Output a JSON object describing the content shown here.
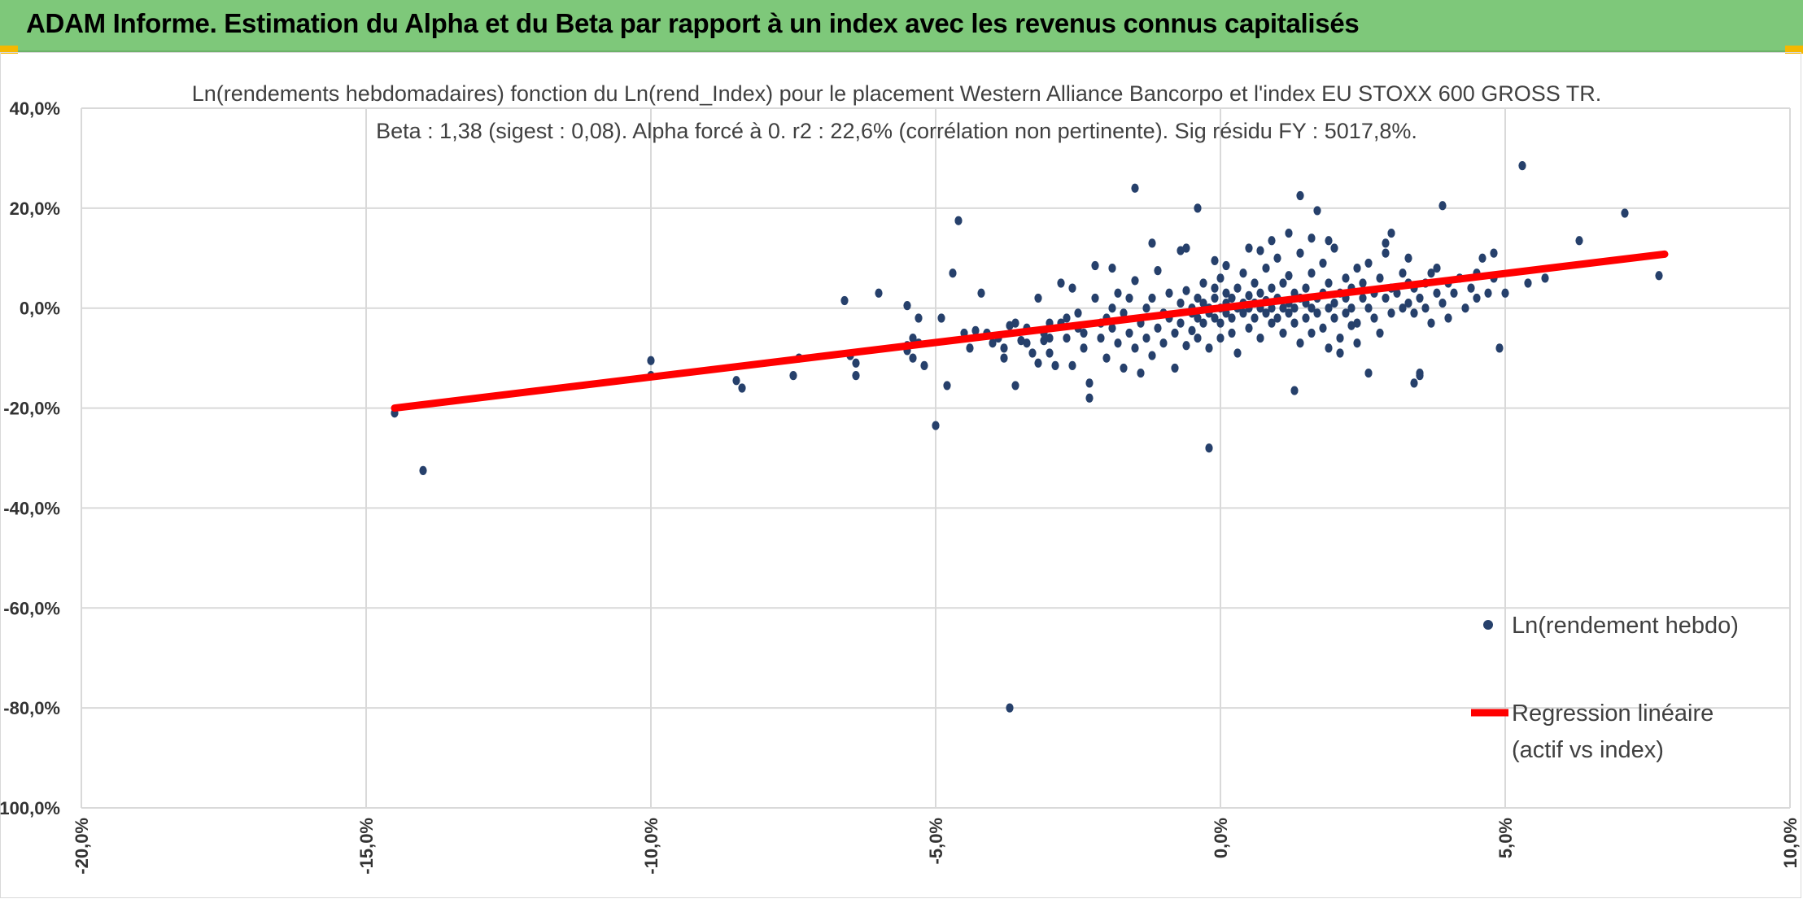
{
  "banner": {
    "title": "ADAM Informe. Estimation du Alpha et du Beta par rapport à un index avec les revenus connus capitalisés",
    "color": "#7ec87a",
    "corner_color": "#f5b800"
  },
  "chart_data": {
    "type": "scatter",
    "title_lines": [
      "Ln(rendements hebdomadaires) fonction du Ln(rend_Index) pour le placement Western Alliance Bancorpo et l'index EU STOXX 600 GROSS TR.",
      "Beta : 1,38 (sigest : 0,08). Alpha forcé à 0. r2 : 22,6% (corrélation non pertinente). Sig résidu FY : 5017,8%."
    ],
    "xlabel": "",
    "ylabel": "",
    "xlim": [
      -0.2,
      0.1
    ],
    "ylim": [
      -1.0,
      0.4
    ],
    "x_ticks": [
      "-20,0%",
      "-15,0%",
      "-10,0%",
      "-5,0%",
      "0,0%",
      "5,0%",
      "10,0%"
    ],
    "y_ticks": [
      "40,0%",
      "20,0%",
      "0,0%",
      "-20,0%",
      "-40,0%",
      "-60,0%",
      "-80,0%",
      "-100,0%"
    ],
    "grid": true,
    "legend_position": "right",
    "series": [
      {
        "name": "Ln(rendement hebdo)",
        "kind": "scatter",
        "color": "#26406b",
        "points": [
          [
            -0.145,
            -0.21
          ],
          [
            -0.14,
            -0.325
          ],
          [
            -0.1,
            -0.105
          ],
          [
            -0.1,
            -0.135
          ],
          [
            -0.085,
            -0.145
          ],
          [
            -0.084,
            -0.16
          ],
          [
            -0.075,
            -0.135
          ],
          [
            -0.074,
            -0.1
          ],
          [
            -0.066,
            0.015
          ],
          [
            -0.065,
            -0.095
          ],
          [
            -0.064,
            -0.11
          ],
          [
            -0.064,
            -0.135
          ],
          [
            -0.06,
            0.03
          ],
          [
            -0.055,
            0.005
          ],
          [
            -0.055,
            -0.075
          ],
          [
            -0.055,
            -0.085
          ],
          [
            -0.054,
            -0.06
          ],
          [
            -0.054,
            -0.1
          ],
          [
            -0.053,
            -0.02
          ],
          [
            -0.053,
            -0.07
          ],
          [
            -0.052,
            -0.115
          ],
          [
            -0.05,
            -0.235
          ],
          [
            -0.049,
            -0.02
          ],
          [
            -0.048,
            -0.155
          ],
          [
            -0.047,
            0.07
          ],
          [
            -0.046,
            0.175
          ],
          [
            -0.045,
            -0.05
          ],
          [
            -0.044,
            -0.08
          ],
          [
            -0.043,
            -0.045
          ],
          [
            -0.042,
            0.03
          ],
          [
            -0.041,
            -0.05
          ],
          [
            -0.04,
            -0.07
          ],
          [
            -0.039,
            -0.06
          ],
          [
            -0.038,
            -0.08
          ],
          [
            -0.038,
            -0.1
          ],
          [
            -0.037,
            -0.035
          ],
          [
            -0.037,
            -0.8
          ],
          [
            -0.036,
            -0.03
          ],
          [
            -0.036,
            -0.155
          ],
          [
            -0.035,
            -0.065
          ],
          [
            -0.034,
            -0.04
          ],
          [
            -0.034,
            -0.07
          ],
          [
            -0.033,
            -0.09
          ],
          [
            -0.032,
            0.02
          ],
          [
            -0.032,
            -0.11
          ],
          [
            -0.031,
            -0.05
          ],
          [
            -0.031,
            -0.065
          ],
          [
            -0.03,
            -0.03
          ],
          [
            -0.03,
            -0.06
          ],
          [
            -0.03,
            -0.09
          ],
          [
            -0.029,
            -0.115
          ],
          [
            -0.028,
            0.05
          ],
          [
            -0.028,
            -0.03
          ],
          [
            -0.027,
            -0.02
          ],
          [
            -0.027,
            -0.06
          ],
          [
            -0.026,
            -0.115
          ],
          [
            -0.025,
            -0.01
          ],
          [
            -0.025,
            -0.04
          ],
          [
            -0.024,
            -0.08
          ],
          [
            -0.024,
            -0.05
          ],
          [
            -0.023,
            -0.15
          ],
          [
            -0.023,
            -0.18
          ],
          [
            -0.022,
            0.085
          ],
          [
            -0.022,
            0.02
          ],
          [
            -0.021,
            -0.03
          ],
          [
            -0.021,
            -0.06
          ],
          [
            -0.02,
            -0.02
          ],
          [
            -0.02,
            -0.1
          ],
          [
            -0.019,
            0.0
          ],
          [
            -0.019,
            -0.04
          ],
          [
            -0.018,
            -0.07
          ],
          [
            -0.018,
            0.03
          ],
          [
            -0.017,
            -0.12
          ],
          [
            -0.017,
            -0.01
          ],
          [
            -0.016,
            -0.05
          ],
          [
            -0.016,
            0.02
          ],
          [
            -0.015,
            -0.08
          ],
          [
            -0.015,
            0.055
          ],
          [
            -0.014,
            -0.03
          ],
          [
            -0.014,
            -0.13
          ],
          [
            -0.013,
            0.0
          ],
          [
            -0.013,
            -0.06
          ],
          [
            -0.012,
            0.02
          ],
          [
            -0.012,
            -0.095
          ],
          [
            -0.011,
            -0.04
          ],
          [
            -0.011,
            0.075
          ],
          [
            -0.01,
            -0.01
          ],
          [
            -0.01,
            -0.07
          ],
          [
            -0.009,
            0.03
          ],
          [
            -0.009,
            -0.02
          ],
          [
            -0.008,
            -0.05
          ],
          [
            -0.008,
            -0.12
          ],
          [
            -0.007,
            0.01
          ],
          [
            -0.007,
            -0.03
          ],
          [
            -0.006,
            0.035
          ],
          [
            -0.006,
            -0.075
          ],
          [
            -0.005,
            -0.01
          ],
          [
            -0.005,
            0.0
          ],
          [
            -0.005,
            -0.045
          ],
          [
            -0.004,
            0.02
          ],
          [
            -0.004,
            -0.02
          ],
          [
            -0.004,
            -0.06
          ],
          [
            -0.003,
            0.01
          ],
          [
            -0.003,
            -0.03
          ],
          [
            -0.003,
            0.05
          ],
          [
            -0.002,
            -0.01
          ],
          [
            -0.002,
            0.0
          ],
          [
            -0.002,
            -0.08
          ],
          [
            -0.001,
            0.02
          ],
          [
            -0.001,
            -0.02
          ],
          [
            -0.001,
            0.04
          ],
          [
            0.0,
            0.0
          ],
          [
            0.0,
            -0.03
          ],
          [
            0.0,
            0.06
          ],
          [
            0.0,
            -0.06
          ],
          [
            0.001,
            0.01
          ],
          [
            0.001,
            -0.01
          ],
          [
            0.001,
            0.03
          ],
          [
            0.002,
            -0.02
          ],
          [
            0.002,
            0.02
          ],
          [
            0.002,
            -0.05
          ],
          [
            0.003,
            0.0
          ],
          [
            0.003,
            0.04
          ],
          [
            0.003,
            -0.09
          ],
          [
            0.004,
            0.01
          ],
          [
            0.004,
            -0.01
          ],
          [
            0.004,
            0.07
          ],
          [
            0.005,
            0.0
          ],
          [
            0.005,
            -0.04
          ],
          [
            0.005,
            0.025
          ],
          [
            0.006,
            0.01
          ],
          [
            0.006,
            -0.02
          ],
          [
            0.006,
            0.05
          ],
          [
            0.007,
            0.0
          ],
          [
            0.007,
            -0.06
          ],
          [
            0.007,
            0.03
          ],
          [
            0.008,
            0.015
          ],
          [
            0.008,
            -0.01
          ],
          [
            0.008,
            0.08
          ],
          [
            0.009,
            0.0
          ],
          [
            0.009,
            -0.03
          ],
          [
            0.009,
            0.04
          ],
          [
            0.01,
            0.02
          ],
          [
            0.01,
            -0.02
          ],
          [
            0.01,
            0.1
          ],
          [
            0.011,
            0.0
          ],
          [
            0.011,
            -0.05
          ],
          [
            0.011,
            0.05
          ],
          [
            0.012,
            0.01
          ],
          [
            0.012,
            -0.01
          ],
          [
            0.012,
            0.065
          ],
          [
            0.013,
            0.03
          ],
          [
            0.013,
            -0.03
          ],
          [
            0.013,
            0.0
          ],
          [
            0.014,
            0.02
          ],
          [
            0.014,
            -0.07
          ],
          [
            0.014,
            0.11
          ],
          [
            0.015,
            0.01
          ],
          [
            0.015,
            -0.02
          ],
          [
            0.015,
            0.04
          ],
          [
            0.016,
            0.0
          ],
          [
            0.016,
            -0.05
          ],
          [
            0.016,
            0.07
          ],
          [
            0.017,
            0.02
          ],
          [
            0.017,
            -0.01
          ],
          [
            0.017,
            0.195
          ],
          [
            0.018,
            0.03
          ],
          [
            0.018,
            -0.04
          ],
          [
            0.018,
            0.09
          ],
          [
            0.019,
            0.0
          ],
          [
            0.019,
            0.05
          ],
          [
            0.019,
            -0.08
          ],
          [
            0.02,
            0.01
          ],
          [
            0.02,
            -0.02
          ],
          [
            0.02,
            0.12
          ],
          [
            0.021,
            0.03
          ],
          [
            0.021,
            -0.06
          ],
          [
            0.022,
            0.02
          ],
          [
            0.022,
            0.06
          ],
          [
            0.022,
            -0.01
          ],
          [
            0.023,
            0.04
          ],
          [
            0.023,
            0.0
          ],
          [
            0.024,
            0.08
          ],
          [
            0.024,
            -0.03
          ],
          [
            0.025,
            0.02
          ],
          [
            0.025,
            0.05
          ],
          [
            0.026,
            0.0
          ],
          [
            0.026,
            0.09
          ],
          [
            0.027,
            0.03
          ],
          [
            0.027,
            -0.02
          ],
          [
            0.028,
            0.06
          ],
          [
            0.028,
            -0.05
          ],
          [
            0.029,
            0.02
          ],
          [
            0.029,
            0.11
          ],
          [
            0.03,
            0.04
          ],
          [
            0.03,
            -0.01
          ],
          [
            -0.004,
            0.2
          ],
          [
            0.012,
            0.15
          ],
          [
            0.014,
            0.225
          ],
          [
            -0.015,
            0.24
          ],
          [
            0.013,
            -0.165
          ],
          [
            -0.002,
            -0.28
          ],
          [
            0.005,
            0.12
          ],
          [
            -0.006,
            0.12
          ],
          [
            0.031,
            0.03
          ],
          [
            0.032,
            0.07
          ],
          [
            0.032,
            0.0
          ],
          [
            0.033,
            0.05
          ],
          [
            0.033,
            0.01
          ],
          [
            0.034,
            0.04
          ],
          [
            0.034,
            -0.01
          ],
          [
            0.035,
            0.02
          ],
          [
            0.035,
            -0.13
          ],
          [
            0.036,
            0.05
          ],
          [
            0.036,
            0.0
          ],
          [
            0.037,
            0.07
          ],
          [
            0.037,
            -0.03
          ],
          [
            0.038,
            0.03
          ],
          [
            0.038,
            0.08
          ],
          [
            0.039,
            0.01
          ],
          [
            0.039,
            0.205
          ],
          [
            0.04,
            0.05
          ],
          [
            0.04,
            -0.02
          ],
          [
            0.041,
            0.03
          ],
          [
            0.042,
            0.06
          ],
          [
            0.043,
            0.0
          ],
          [
            0.044,
            0.04
          ],
          [
            0.045,
            0.02
          ],
          [
            0.045,
            0.07
          ],
          [
            0.046,
            0.1
          ],
          [
            0.047,
            0.03
          ],
          [
            0.048,
            0.06
          ],
          [
            0.048,
            0.11
          ],
          [
            0.049,
            -0.08
          ],
          [
            0.05,
            0.03
          ],
          [
            0.053,
            0.285
          ],
          [
            0.054,
            0.05
          ],
          [
            0.057,
            0.06
          ],
          [
            0.063,
            0.135
          ],
          [
            0.071,
            0.19
          ],
          [
            0.077,
            0.065
          ],
          [
            0.026,
            -0.13
          ],
          [
            0.034,
            -0.15
          ],
          [
            0.035,
            -0.135
          ],
          [
            0.024,
            -0.07
          ],
          [
            0.023,
            -0.035
          ],
          [
            0.021,
            -0.09
          ],
          [
            0.019,
            0.135
          ],
          [
            0.016,
            0.14
          ],
          [
            0.03,
            0.15
          ],
          [
            0.029,
            0.13
          ],
          [
            0.033,
            0.1
          ],
          [
            -0.012,
            0.13
          ],
          [
            -0.007,
            0.115
          ],
          [
            -0.019,
            0.08
          ],
          [
            -0.026,
            0.04
          ],
          [
            0.001,
            0.085
          ],
          [
            0.009,
            0.135
          ],
          [
            0.007,
            0.115
          ],
          [
            -0.001,
            0.095
          ]
        ]
      },
      {
        "name": "Regression linéaire (actif vs index)",
        "name_lines": [
          "Regression linéaire",
          "(actif vs index)"
        ],
        "kind": "line",
        "color": "#ff0000",
        "points": [
          [
            -0.145,
            -0.2
          ],
          [
            0.078,
            0.108
          ]
        ]
      }
    ]
  }
}
